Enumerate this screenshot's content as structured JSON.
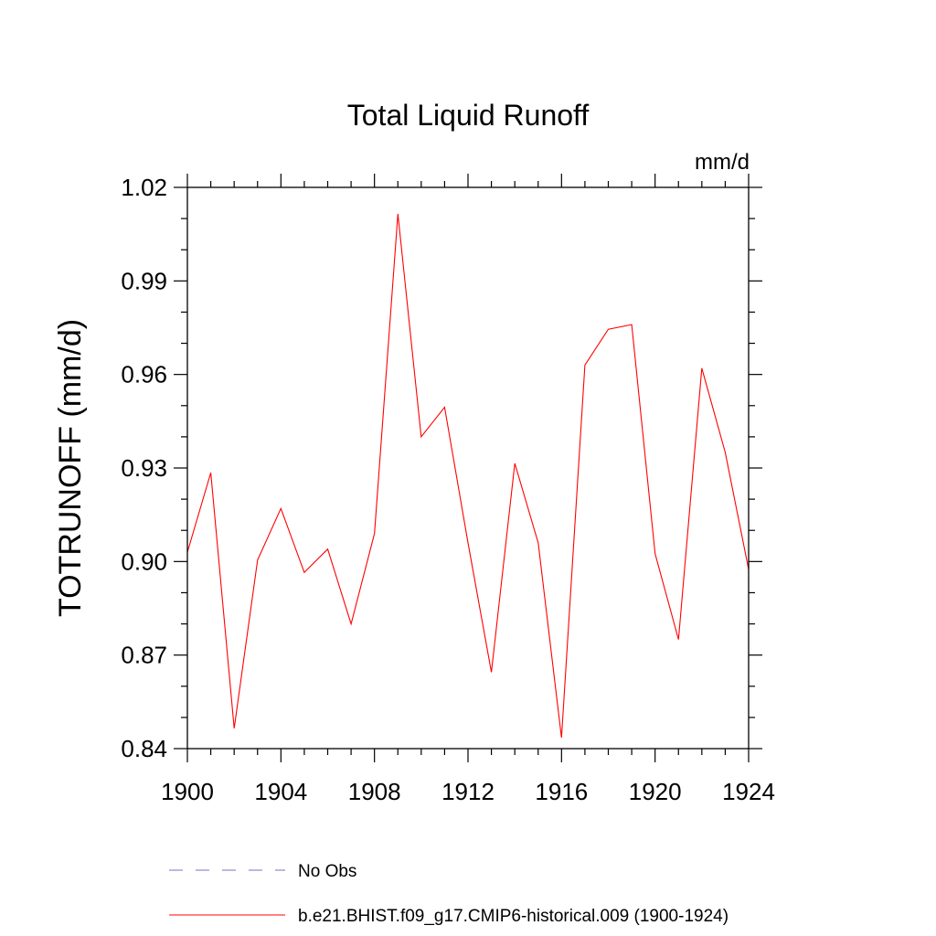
{
  "chart_data": {
    "type": "line",
    "title": "Total Liquid Runoff",
    "units": "mm/d",
    "ylabel": "TOTRUNOFF  (mm/d)",
    "xlabel": "",
    "xlim": [
      1900,
      1924
    ],
    "ylim": [
      0.84,
      1.02
    ],
    "xticks": [
      1900,
      1904,
      1908,
      1912,
      1916,
      1920,
      1924
    ],
    "xtick_labels": [
      "1900",
      "1904",
      "1908",
      "1912",
      "1916",
      "1920",
      "1924"
    ],
    "yticks": [
      0.84,
      0.87,
      0.9,
      0.93,
      0.96,
      0.99,
      1.02
    ],
    "ytick_labels": [
      "0.84",
      "0.87",
      "0.90",
      "0.93",
      "0.96",
      "0.99",
      "1.02"
    ],
    "grid": false,
    "legend_position": "bottom",
    "series": [
      {
        "name": "b.e21.BHIST.f09_g17.CMIP6-historical.009 (1900-1924)",
        "color": "#ff0000",
        "style": "solid",
        "x": [
          1900,
          1901,
          1902,
          1903,
          1904,
          1905,
          1906,
          1907,
          1908,
          1909,
          1910,
          1911,
          1912,
          1913,
          1914,
          1915,
          1916,
          1917,
          1918,
          1919,
          1920,
          1921,
          1922,
          1923,
          1924
        ],
        "y": [
          0.903,
          0.9285,
          0.8465,
          0.9005,
          0.917,
          0.8965,
          0.904,
          0.88,
          0.909,
          1.0115,
          0.94,
          0.9495,
          0.906,
          0.8645,
          0.9315,
          0.906,
          0.8435,
          0.963,
          0.9745,
          0.976,
          0.9025,
          0.875,
          0.962,
          0.935,
          0.8975
        ]
      }
    ],
    "legend": [
      {
        "label": "No Obs",
        "color": "#7b6fc6",
        "style": "dashed"
      },
      {
        "label": "b.e21.BHIST.f09_g17.CMIP6-historical.009 (1900-1924)",
        "color": "#ff0000",
        "style": "solid"
      }
    ]
  }
}
